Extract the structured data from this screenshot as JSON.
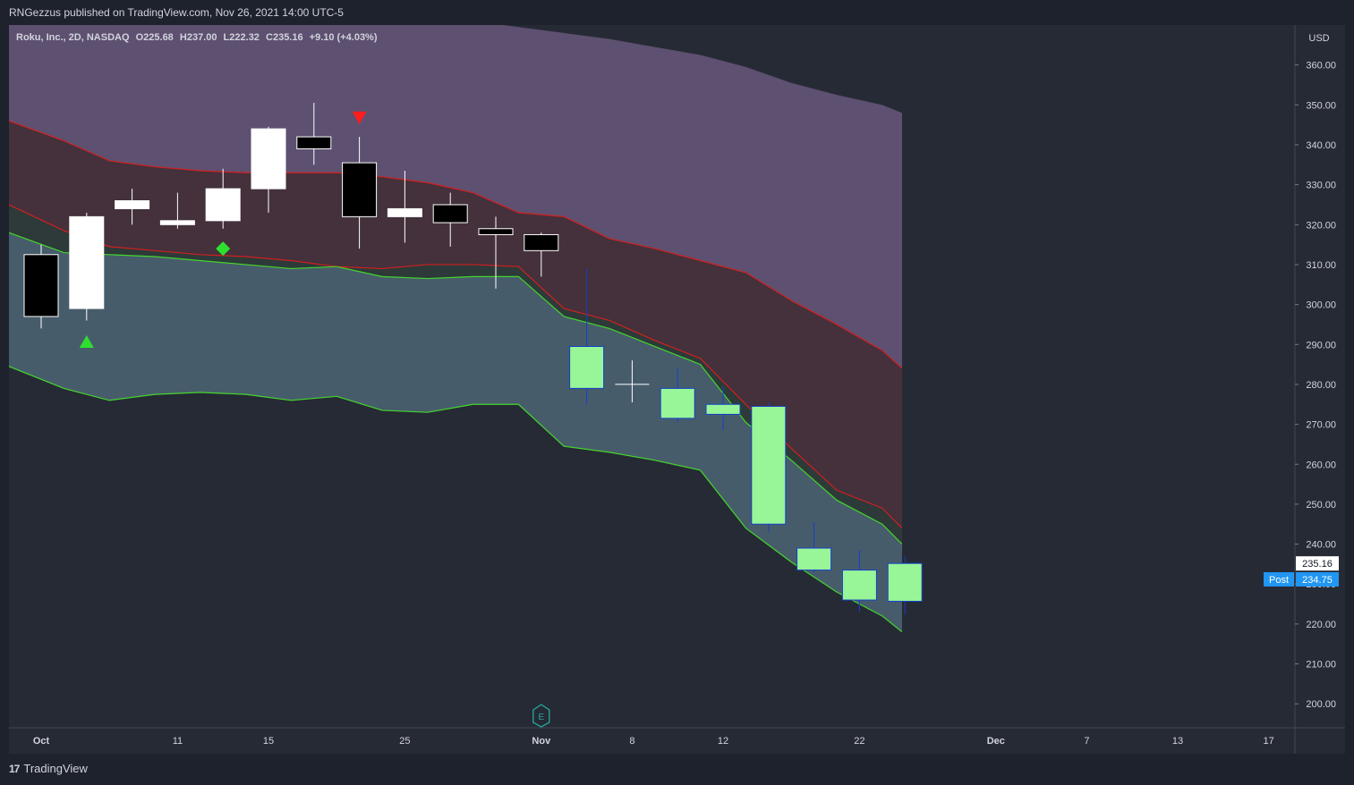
{
  "header": {
    "published_text": "RNGezzus published on TradingView.com, Nov 26, 2021 14:00 UTC-5"
  },
  "legend": {
    "symbol": "Roku, Inc., 2D, NASDAQ",
    "open_label": "O",
    "open": "225.68",
    "high_label": "H",
    "high": "237.00",
    "low_label": "L",
    "low": "222.32",
    "close_label": "C",
    "close": "235.16",
    "change": "+9.10 (+4.03%)"
  },
  "footer": {
    "brand": "TradingView",
    "logo_mark": "17"
  },
  "colors": {
    "background": "#262a35",
    "page": "#1e222d",
    "axis_text": "#d1d4dc",
    "band_purple": "#5e5070",
    "band_red": "#44313b",
    "band_green": "#2d3a39",
    "band_blue": "#475c6b",
    "line_red": "#d21f1f",
    "line_green": "#44d62c",
    "up_candle_early": "#ffffff",
    "down_candle_early": "#000000",
    "candle_late": "#98f598",
    "candle_late_border": "#1540c8",
    "price_tag": "#2196f3"
  },
  "chart_data": {
    "type": "candlestick",
    "title": "",
    "currency": "USD",
    "ylim": [
      194,
      370
    ],
    "y_ticks": [
      "200.00",
      "210.00",
      "220.00",
      "230.00",
      "240.00",
      "250.00",
      "260.00",
      "270.00",
      "280.00",
      "290.00",
      "300.00",
      "310.00",
      "320.00",
      "330.00",
      "340.00",
      "350.00",
      "360.00"
    ],
    "x_ticks": [
      {
        "label": "Oct",
        "t": 0,
        "bold": true
      },
      {
        "label": "11",
        "t": 3,
        "bold": false
      },
      {
        "label": "15",
        "t": 5,
        "bold": false
      },
      {
        "label": "25",
        "t": 8,
        "bold": false
      },
      {
        "label": "Nov",
        "t": 11,
        "bold": true
      },
      {
        "label": "8",
        "t": 13,
        "bold": false
      },
      {
        "label": "12",
        "t": 15,
        "bold": false
      },
      {
        "label": "22",
        "t": 18,
        "bold": false
      },
      {
        "label": "Dec",
        "t": 21,
        "bold": true
      },
      {
        "label": "7",
        "t": 23,
        "bold": false
      },
      {
        "label": "13",
        "t": 25,
        "bold": false
      },
      {
        "label": "17",
        "t": 27,
        "bold": false
      }
    ],
    "candles": [
      {
        "o": 312.5,
        "h": 315.0,
        "l": 294.0,
        "c": 297.0,
        "style": "early"
      },
      {
        "o": 299.0,
        "h": 323.0,
        "l": 296.0,
        "c": 322.0,
        "style": "early"
      },
      {
        "o": 324.0,
        "h": 329.0,
        "l": 320.0,
        "c": 326.0,
        "style": "early"
      },
      {
        "o": 320.0,
        "h": 328.0,
        "l": 319.0,
        "c": 321.0,
        "style": "early"
      },
      {
        "o": 321.0,
        "h": 334.0,
        "l": 319.0,
        "c": 329.0,
        "style": "early"
      },
      {
        "o": 329.0,
        "h": 344.5,
        "l": 323.0,
        "c": 344.0,
        "style": "early"
      },
      {
        "o": 342.0,
        "h": 350.5,
        "l": 335.0,
        "c": 339.0,
        "style": "early"
      },
      {
        "o": 335.5,
        "h": 342.0,
        "l": 314.0,
        "c": 322.0,
        "style": "early"
      },
      {
        "o": 322.0,
        "h": 333.5,
        "l": 315.5,
        "c": 324.0,
        "style": "early"
      },
      {
        "o": 325.0,
        "h": 328.0,
        "l": 314.5,
        "c": 320.5,
        "style": "early"
      },
      {
        "o": 319.0,
        "h": 322.0,
        "l": 304.0,
        "c": 317.5,
        "style": "early"
      },
      {
        "o": 317.5,
        "h": 318.0,
        "l": 307.0,
        "c": 313.5,
        "style": "early"
      },
      {
        "o": 279.0,
        "h": 309.0,
        "l": 275.0,
        "c": 289.5,
        "style": "late"
      },
      {
        "o": 280.0,
        "h": 286.0,
        "l": 275.5,
        "c": 279.5,
        "style": "cross"
      },
      {
        "o": 271.5,
        "h": 284.0,
        "l": 270.5,
        "c": 279.0,
        "style": "late"
      },
      {
        "o": 272.5,
        "h": 279.5,
        "l": 268.5,
        "c": 275.0,
        "style": "late"
      },
      {
        "o": 245.0,
        "h": 275.5,
        "l": 243.0,
        "c": 274.5,
        "style": "late"
      },
      {
        "o": 233.5,
        "h": 245.5,
        "l": 233.0,
        "c": 239.0,
        "style": "late"
      },
      {
        "o": 226.0,
        "h": 238.5,
        "l": 223.0,
        "c": 233.5,
        "style": "late"
      },
      {
        "o": 225.68,
        "h": 237.0,
        "l": 222.32,
        "c": 235.16,
        "style": "late"
      }
    ],
    "bands": {
      "top": [
        380,
        380,
        380,
        380,
        380,
        380,
        380,
        380,
        380,
        377.5,
        371.0,
        369.5,
        368.0,
        366.5,
        364.5,
        362.5,
        359.5,
        355.5,
        352.5,
        350.0,
        348.0
      ],
      "r1": [
        346.0,
        341.0,
        336.0,
        334.5,
        333.5,
        333.0,
        333.0,
        333.0,
        332.0,
        330.5,
        328.0,
        323.0,
        322.0,
        316.5,
        314.0,
        311.0,
        308.0,
        301.0,
        295.0,
        288.5,
        284.0
      ],
      "r2": [
        325.0,
        318.5,
        314.5,
        313.5,
        312.5,
        312.0,
        311.0,
        309.5,
        309.0,
        310.0,
        310.0,
        309.5,
        299.0,
        296.0,
        291.0,
        286.5,
        275.0,
        264.0,
        253.5,
        249.0,
        244.0
      ],
      "g1": [
        318.0,
        313.0,
        312.5,
        312.0,
        311.0,
        310.0,
        309.0,
        309.5,
        307.0,
        306.5,
        307.0,
        307.0,
        297.0,
        294.0,
        289.5,
        285.0,
        270.5,
        261.0,
        251.0,
        245.0,
        240.0
      ],
      "g2": [
        284.5,
        279.0,
        276.0,
        277.5,
        278.0,
        277.5,
        276.0,
        277.0,
        273.5,
        273.0,
        275.0,
        275.0,
        264.5,
        263.0,
        261.0,
        258.5,
        244.0,
        235.5,
        228.0,
        222.0,
        218.0
      ]
    },
    "band_x": [
      0,
      0.5,
      1.5,
      2.5,
      3.5,
      4.5,
      5.5,
      6.5,
      7.5,
      8.5,
      9.5,
      10.5,
      11.5,
      12.5,
      13.5,
      14.5,
      15.5,
      16.5,
      17.5,
      18.5,
      19.5
    ],
    "signals": [
      {
        "type": "buy-triangle",
        "index": 1,
        "price": 290.5,
        "color": "#2ee02e"
      },
      {
        "type": "diamond",
        "index": 4,
        "price": 314.0,
        "color": "#2ee02e"
      },
      {
        "type": "sell-triangle",
        "index": 7,
        "price": 347.0,
        "color": "#ff1c1c"
      }
    ],
    "price_tags": [
      {
        "label": "",
        "value": "235.16",
        "price": 235.16,
        "bg": "#ffffff",
        "fg": "#131722"
      },
      {
        "label": "Post",
        "value": "234.75",
        "price": 234.75,
        "bg": "#2196f3",
        "fg": "#ffffff"
      }
    ],
    "earnings_marker": {
      "label": "E",
      "t": 11
    }
  }
}
